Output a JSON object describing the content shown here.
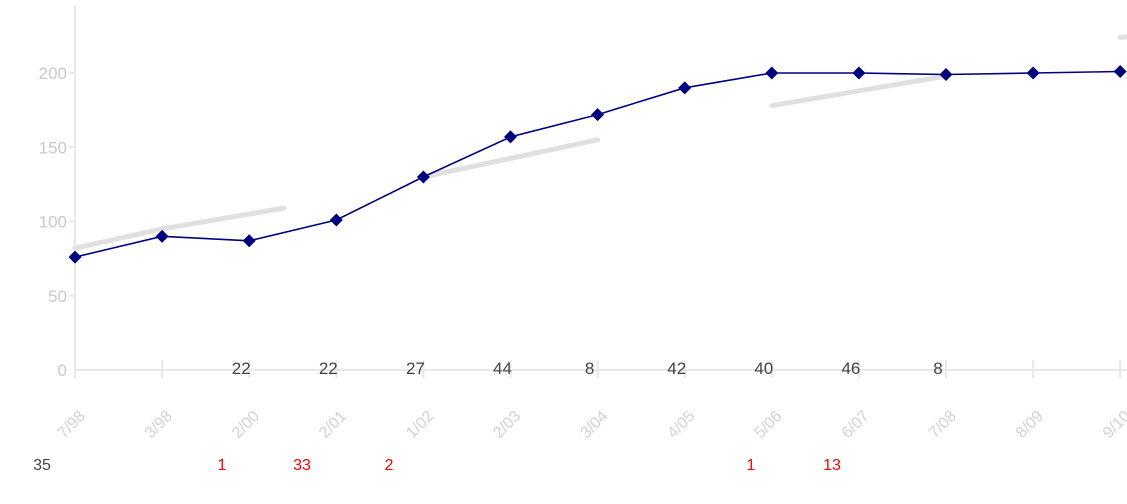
{
  "chart_data": {
    "type": "line",
    "title": "",
    "xlabel": "",
    "ylabel": "",
    "ylim": [
      0,
      200
    ],
    "yticks": [
      0,
      50,
      100,
      150,
      200
    ],
    "ytick_labels": [
      "0",
      "50",
      "100",
      "150",
      "200"
    ],
    "grid": false,
    "categories": [
      "7/98",
      "3/98",
      "2/00",
      "2/01",
      "1/02",
      "2/03",
      "3/04",
      "4/05",
      "5/06",
      "6/07",
      "7/08",
      "8/09",
      "9/10"
    ],
    "series": [
      {
        "values": [
          76,
          90,
          87,
          101,
          130,
          157,
          172,
          190,
          200,
          200,
          199,
          200,
          201
        ],
        "color": "#000080",
        "marker": "diamond"
      }
    ],
    "trend_line_color": "#e0e0e0",
    "volume_row": [
      "",
      "",
      "22",
      "22",
      "27",
      "44",
      "8",
      "42",
      "40",
      "46",
      "8",
      "",
      ""
    ],
    "volume_row_color": "#444444",
    "bottom_row": [
      {
        "text": "35",
        "color": "#444444"
      },
      {
        "text": "1",
        "color": "#ff0000"
      },
      {
        "text": "33",
        "color": "#ff0000"
      },
      {
        "text": "2",
        "color": "#ff0000"
      },
      {
        "text": "1",
        "color": "#ff0000"
      },
      {
        "text": "13",
        "color": "#ff0000"
      }
    ],
    "axis_color": "#e8e8e8"
  }
}
